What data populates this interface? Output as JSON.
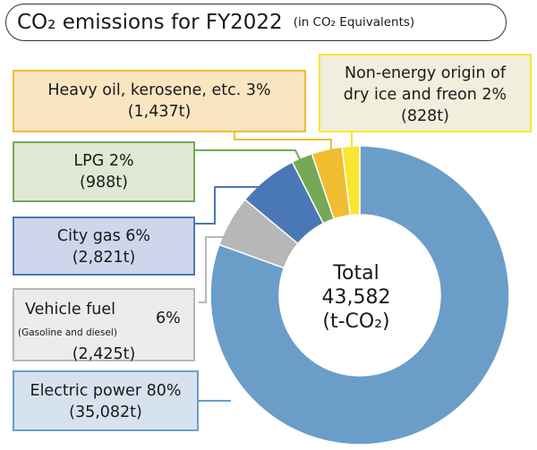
{
  "header": {
    "title": "CO₂ emissions for FY2022",
    "subtitle": "(in CO₂ Equivalents)"
  },
  "chart_data": {
    "type": "pie",
    "variant": "donut",
    "title": "CO₂ emissions for FY2022",
    "subtitle": "(in CO₂ Equivalents)",
    "unit": "t",
    "total_label": [
      "Total",
      "43,582",
      "(t-CO₂)"
    ],
    "total_value": 43582,
    "slices": [
      {
        "key": "electric",
        "label": "Electric power 80%",
        "name": "Electric power",
        "percent": 80,
        "value": 35082,
        "value_label": "(35,082t)",
        "color": "#6a9ec9"
      },
      {
        "key": "vehicle",
        "label": "Vehicle fuel",
        "name": "Vehicle fuel",
        "note": "(Gasoline and diesel)",
        "percent_label": "6%",
        "percent": 6,
        "value": 2425,
        "value_label": "(2,425t)",
        "color": "#b7b7b7"
      },
      {
        "key": "citygas",
        "label": "City gas 6%",
        "name": "City gas",
        "percent": 6,
        "value": 2821,
        "value_label": "(2,821t)",
        "color": "#4a78b7"
      },
      {
        "key": "lpg",
        "label": "LPG 2%",
        "name": "LPG",
        "percent": 2,
        "value": 988,
        "value_label": "(988t)",
        "color": "#76a857"
      },
      {
        "key": "heavyoil",
        "label": "Heavy oil, kerosene, etc. 3%",
        "name": "Heavy oil, kerosene, etc.",
        "percent": 3,
        "value": 1437,
        "value_label": "(1,437t)",
        "color": "#f0bd33"
      },
      {
        "key": "nonenergy",
        "label": "Non-energy origin of",
        "label2": "dry ice and freon 2%",
        "name": "Non-energy origin of dry ice and freon",
        "percent": 2,
        "value": 828,
        "value_label": "(828t)",
        "color": "#f8e630"
      }
    ]
  },
  "colors": {
    "electric_box_bg": "#d6e2ee",
    "electric_box_border": "#6a9ec9",
    "vehicle_box_bg": "#ececec",
    "vehicle_box_border": "#b7b7b7",
    "citygas_box_bg": "#cfd6ec",
    "citygas_box_border": "#4a78b7",
    "lpg_box_bg": "#dfe8d3",
    "lpg_box_border": "#76a857",
    "heavyoil_box_bg": "#fae5c1",
    "heavyoil_box_border": "#f0bd33",
    "nonenergy_box_bg": "#f2eedc",
    "nonenergy_box_border": "#f8e630"
  }
}
